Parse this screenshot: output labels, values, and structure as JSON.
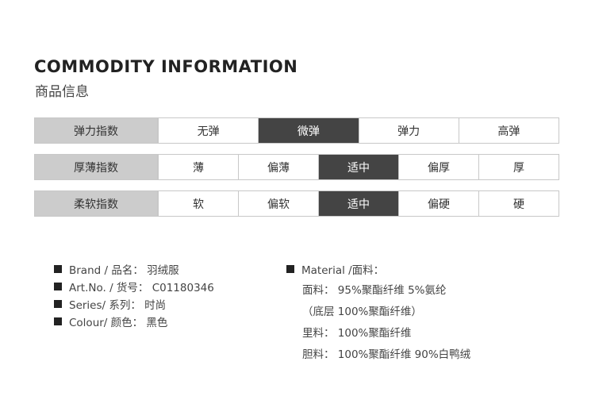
{
  "header": {
    "title": "COMMODITY INFORMATION",
    "subtitle": "商品信息"
  },
  "indices": [
    {
      "label": "弹力指数",
      "options": [
        "无弹",
        "微弹",
        "弹力",
        "高弹"
      ],
      "selected": "微弹"
    },
    {
      "label": "厚薄指数",
      "options": [
        "薄",
        "偏薄",
        "适中",
        "偏厚",
        "厚"
      ],
      "selected": "适中"
    },
    {
      "label": "柔软指数",
      "options": [
        "软",
        "偏软",
        "适中",
        "偏硬",
        "硬"
      ],
      "selected": "适中"
    }
  ],
  "details": {
    "brand": "Brand / 品名：  羽绒服",
    "art_no": "Art.No. / 货号：  C01180346",
    "series": "Series/ 系列：  时尚",
    "colour": "Colour/ 颜色：  黑色"
  },
  "material": {
    "heading": "Material /面料：",
    "lines": [
      "面料：  95%聚酯纤维   5%氨纶",
      "（底层 100%聚酯纤维）",
      "里料：  100%聚酯纤维",
      "胆料：  100%聚酯纤维    90%白鸭绒"
    ]
  },
  "colors": {
    "label_bg": "#cccccc",
    "active_bg": "#444444",
    "border": "#c8c8c8"
  }
}
